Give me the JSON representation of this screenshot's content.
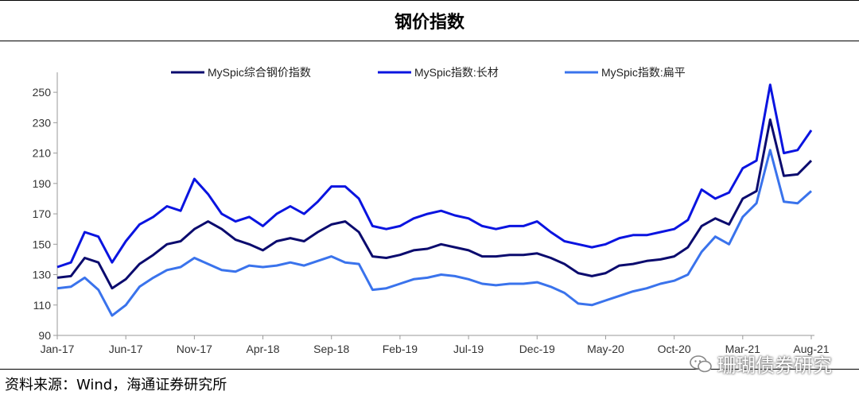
{
  "title": "钢价指数",
  "source": "资料来源：Wind，海通证券研究所",
  "watermark": "珊瑚债券研究",
  "chart_data": {
    "type": "line",
    "x": [
      "2017-01",
      "2017-02",
      "2017-03",
      "2017-04",
      "2017-05",
      "2017-06",
      "2017-07",
      "2017-08",
      "2017-09",
      "2017-10",
      "2017-11",
      "2017-12",
      "2018-01",
      "2018-02",
      "2018-03",
      "2018-04",
      "2018-05",
      "2018-06",
      "2018-07",
      "2018-08",
      "2018-09",
      "2018-10",
      "2018-11",
      "2018-12",
      "2019-01",
      "2019-02",
      "2019-03",
      "2019-04",
      "2019-05",
      "2019-06",
      "2019-07",
      "2019-08",
      "2019-09",
      "2019-10",
      "2019-11",
      "2019-12",
      "2020-01",
      "2020-02",
      "2020-03",
      "2020-04",
      "2020-05",
      "2020-06",
      "2020-07",
      "2020-08",
      "2020-09",
      "2020-10",
      "2020-11",
      "2020-12",
      "2021-01",
      "2021-02",
      "2021-03",
      "2021-04",
      "2021-05",
      "2021-06",
      "2021-07",
      "2021-08"
    ],
    "x_tick_labels": [
      "Jan-17",
      "Jun-17",
      "Nov-17",
      "Apr-18",
      "Sep-18",
      "Feb-19",
      "Jul-19",
      "Dec-19",
      "May-20",
      "Oct-20",
      "Mar-21",
      "Aug-21"
    ],
    "ylim": [
      90,
      260
    ],
    "y_ticks": [
      90,
      110,
      130,
      150,
      170,
      190,
      210,
      230,
      250
    ],
    "legend_position": "top",
    "grid": false,
    "series": [
      {
        "name": "MySpic综合钢价指数",
        "color": "#0b0b6e",
        "values": [
          128,
          129,
          141,
          138,
          121,
          127,
          137,
          143,
          150,
          152,
          160,
          165,
          160,
          153,
          150,
          146,
          152,
          154,
          152,
          158,
          163,
          165,
          158,
          142,
          141,
          143,
          146,
          147,
          150,
          148,
          146,
          142,
          142,
          143,
          143,
          144,
          141,
          137,
          131,
          129,
          131,
          136,
          137,
          139,
          140,
          142,
          148,
          162,
          167,
          163,
          180,
          185,
          232,
          195,
          196,
          205
        ]
      },
      {
        "name": "MySpic指数:长材",
        "color": "#0a14e0",
        "values": [
          135,
          138,
          158,
          155,
          138,
          152,
          163,
          168,
          175,
          172,
          193,
          183,
          170,
          165,
          168,
          162,
          170,
          175,
          170,
          178,
          188,
          188,
          180,
          162,
          160,
          162,
          167,
          170,
          172,
          169,
          167,
          162,
          160,
          162,
          162,
          165,
          158,
          152,
          150,
          148,
          150,
          154,
          156,
          156,
          158,
          160,
          166,
          186,
          180,
          184,
          200,
          205,
          255,
          210,
          212,
          225
        ]
      },
      {
        "name": "MySpic指数:扁平",
        "color": "#3a73ec",
        "values": [
          121,
          122,
          128,
          120,
          103,
          110,
          122,
          128,
          133,
          135,
          141,
          137,
          133,
          132,
          136,
          135,
          136,
          138,
          136,
          139,
          142,
          138,
          137,
          120,
          121,
          124,
          127,
          128,
          130,
          129,
          127,
          124,
          123,
          124,
          124,
          125,
          122,
          118,
          111,
          110,
          113,
          116,
          119,
          121,
          124,
          126,
          130,
          145,
          155,
          150,
          168,
          177,
          212,
          178,
          177,
          185
        ]
      }
    ]
  }
}
